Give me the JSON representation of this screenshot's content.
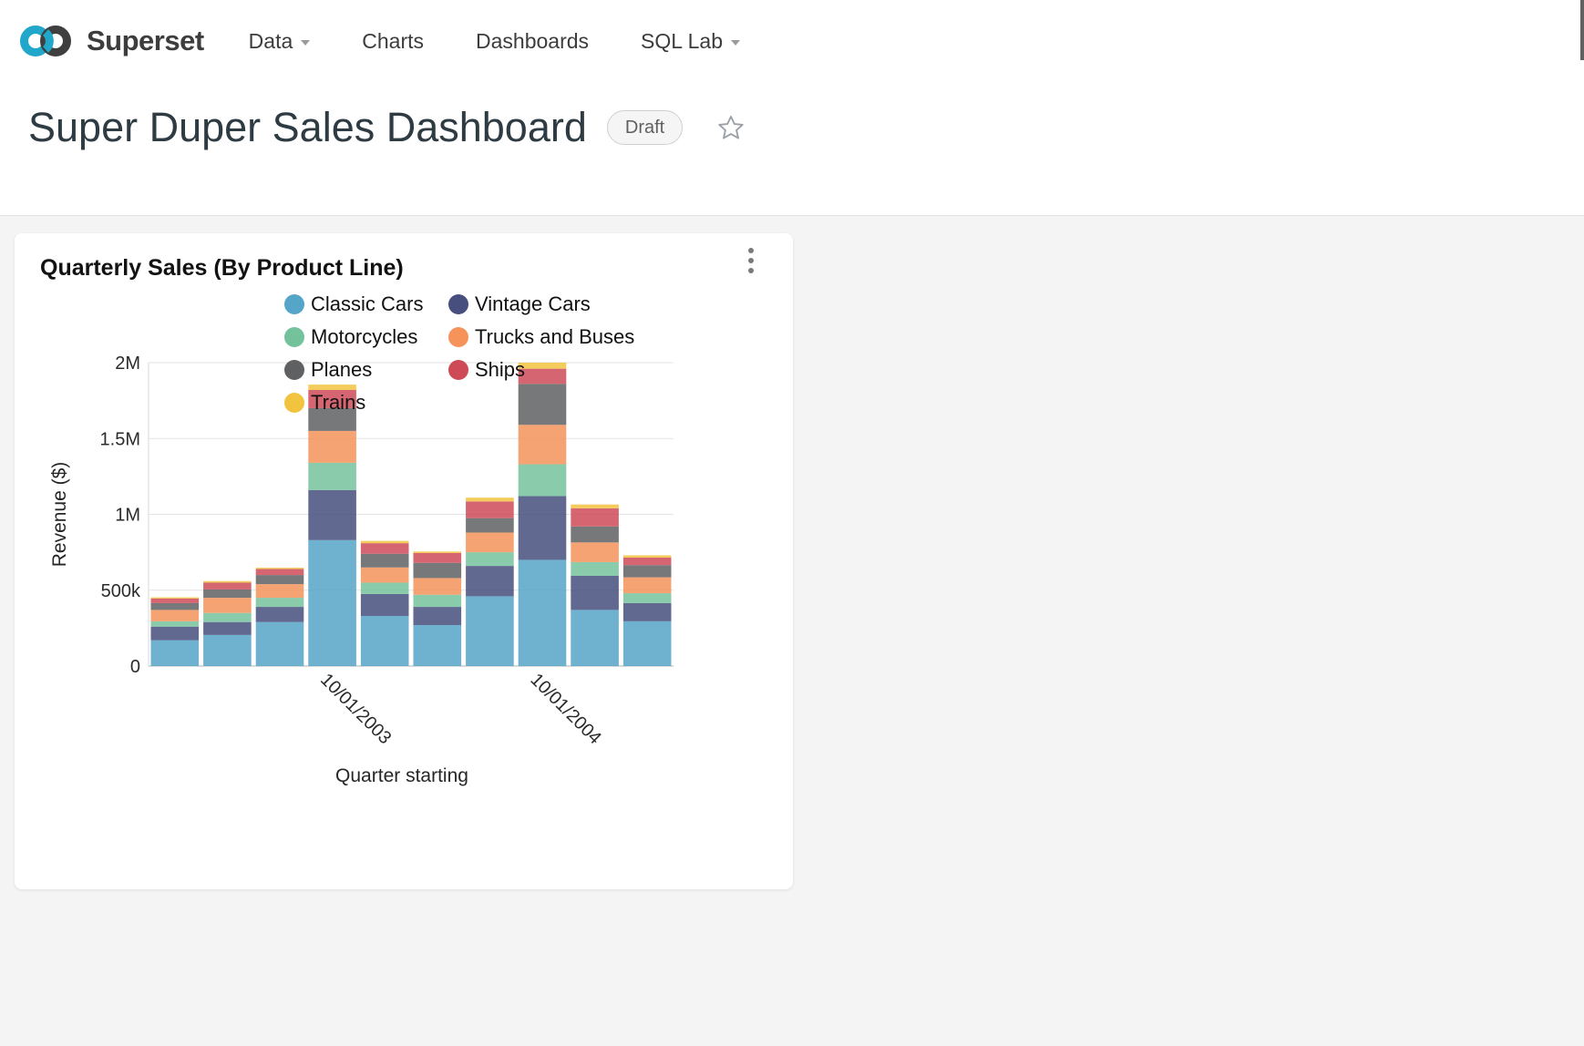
{
  "nav": {
    "brand": "Superset",
    "items": [
      {
        "label": "Data",
        "has_dropdown": true
      },
      {
        "label": "Charts",
        "has_dropdown": false
      },
      {
        "label": "Dashboards",
        "has_dropdown": false
      },
      {
        "label": "SQL Lab",
        "has_dropdown": true
      }
    ]
  },
  "header": {
    "title": "Super Duper Sales Dashboard",
    "status_badge": "Draft"
  },
  "card": {
    "title": "Quarterly Sales (By Product Line)"
  },
  "colors": {
    "brand_teal": "#20A7C9",
    "brand_dark": "#3f3f3f",
    "page_bg": "#f4f4f4",
    "gridline": "#e3e3e3",
    "axis_line": "#b3b3b3"
  },
  "chart_data": {
    "type": "bar",
    "stacked": true,
    "title": "Quarterly Sales (By Product Line)",
    "xlabel": "Quarter starting",
    "ylabel": "Revenue ($)",
    "ylim": [
      0,
      2000000
    ],
    "grid": true,
    "legend_position": "top",
    "bar_count": 10,
    "y_ticks": [
      {
        "value": 0,
        "label": "0"
      },
      {
        "value": 500000,
        "label": "500k"
      },
      {
        "value": 1000000,
        "label": "1M"
      },
      {
        "value": 1500000,
        "label": "1.5M"
      },
      {
        "value": 2000000,
        "label": "2M"
      }
    ],
    "x_ticks": [
      {
        "bar_index": 3,
        "label": "10/01/2003"
      },
      {
        "bar_index": 7,
        "label": "10/01/2004"
      }
    ],
    "series": [
      {
        "name": "Classic Cars",
        "color": "#55A5C8",
        "values": [
          170000,
          205000,
          290000,
          830000,
          330000,
          270000,
          460000,
          700000,
          370000,
          295000
        ]
      },
      {
        "name": "Vintage Cars",
        "color": "#474F7E",
        "values": [
          90000,
          85000,
          100000,
          330000,
          145000,
          120000,
          200000,
          420000,
          225000,
          120000
        ]
      },
      {
        "name": "Motorcycles",
        "color": "#74C29B",
        "values": [
          35000,
          60000,
          60000,
          180000,
          75000,
          80000,
          90000,
          210000,
          90000,
          65000
        ]
      },
      {
        "name": "Trucks and Buses",
        "color": "#F5935B",
        "values": [
          75000,
          100000,
          90000,
          210000,
          100000,
          110000,
          130000,
          260000,
          130000,
          105000
        ]
      },
      {
        "name": "Planes",
        "color": "#5F6062",
        "values": [
          45000,
          55000,
          60000,
          150000,
          90000,
          100000,
          95000,
          270000,
          105000,
          80000
        ]
      },
      {
        "name": "Ships",
        "color": "#CE4A57",
        "values": [
          30000,
          45000,
          40000,
          120000,
          70000,
          65000,
          110000,
          100000,
          120000,
          50000
        ]
      },
      {
        "name": "Trains",
        "color": "#F2C33E",
        "values": [
          8000,
          10000,
          8000,
          35000,
          15000,
          10000,
          25000,
          40000,
          25000,
          15000
        ]
      }
    ]
  }
}
